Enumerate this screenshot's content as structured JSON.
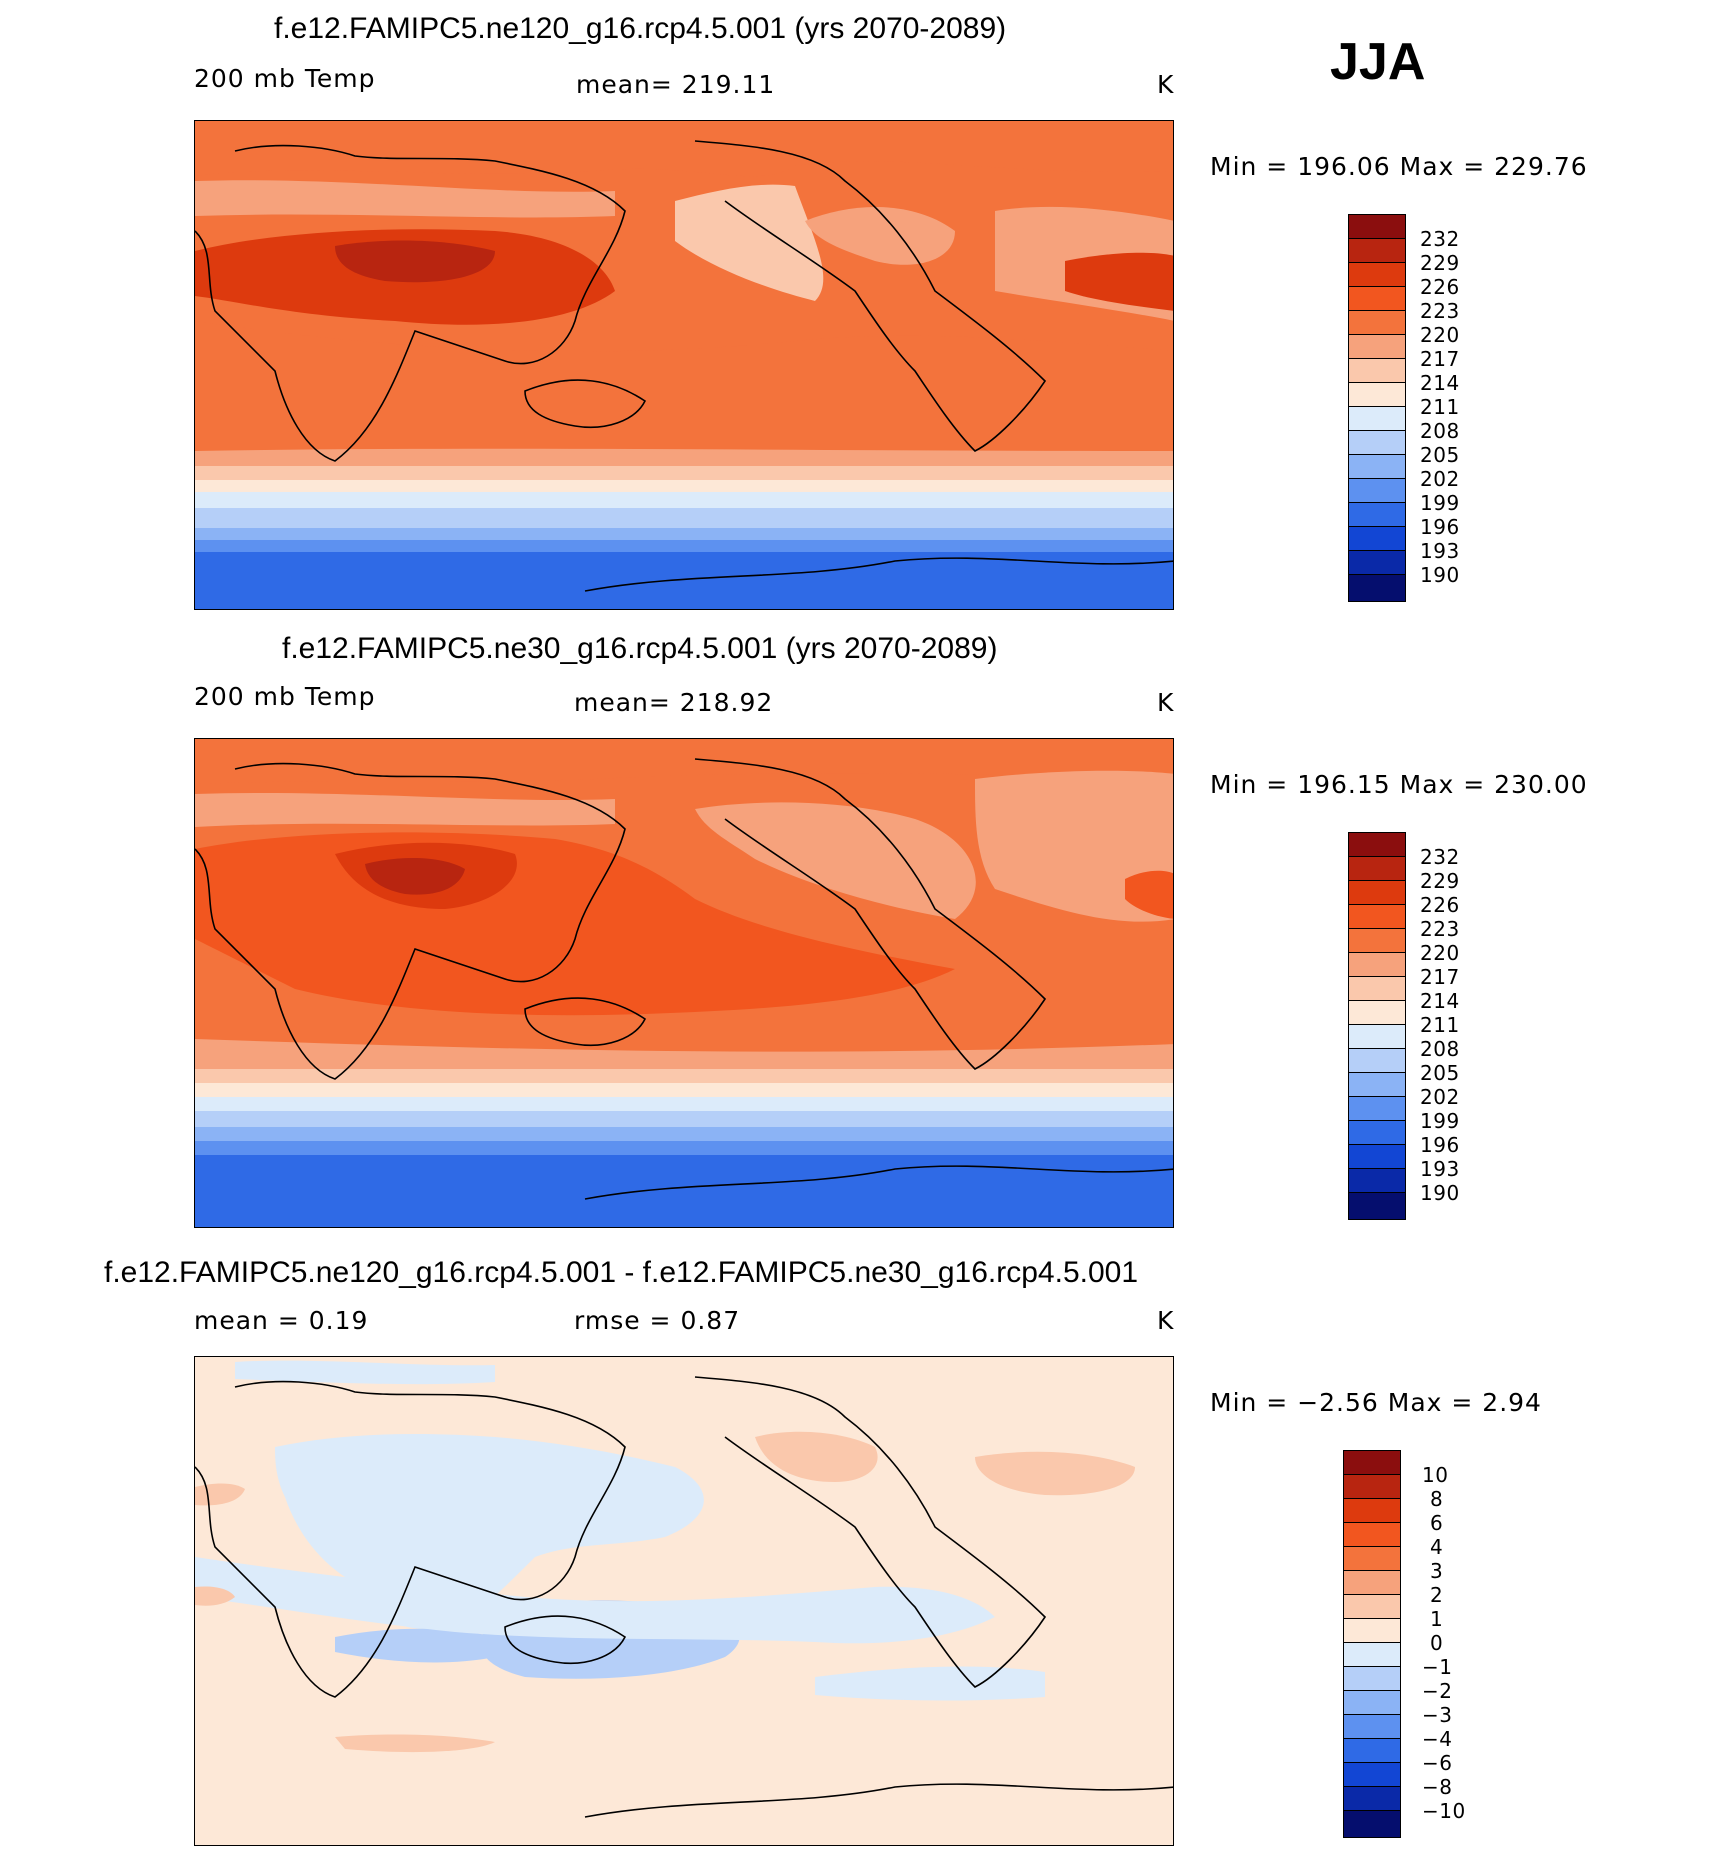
{
  "season": "JJA",
  "panels": [
    {
      "title": "f.e12.FAMIPC5.ne120_g16.rcp4.5.001 (yrs 2070-2089)",
      "variable": "200 mb Temp",
      "stat": "mean=  219.11",
      "units": "K",
      "minmax": "Min  =  196.06  Max  =  229.76"
    },
    {
      "title": "f.e12.FAMIPC5.ne30_g16.rcp4.5.001 (yrs 2070-2089)",
      "variable": "200 mb Temp",
      "stat": "mean=  218.92",
      "units": "K",
      "minmax": "Min  =  196.15  Max  =  230.00"
    },
    {
      "title": "f.e12.FAMIPC5.ne120_g16.rcp4.5.001 - f.e12.FAMIPC5.ne30_g16.rcp4.5.001",
      "variable": "mean  =     0.19",
      "stat": "rmse  =     0.87",
      "units": "K",
      "minmax": "Min  =    −2.56  Max  =      2.94"
    }
  ],
  "temp_colorbar": {
    "levels": [
      "232",
      "229",
      "226",
      "223",
      "220",
      "217",
      "214",
      "211",
      "208",
      "205",
      "202",
      "199",
      "196",
      "193",
      "190"
    ],
    "colors": [
      "#8b0e0e",
      "#b82510",
      "#dd3a0e",
      "#f2561f",
      "#f3733c",
      "#f6a27c",
      "#fac8ac",
      "#fde8d7",
      "#dcebfa",
      "#b5cff8",
      "#8bb3f5",
      "#5d91f0",
      "#2f6ae6",
      "#1246d4",
      "#0a29a8",
      "#050e6e"
    ]
  },
  "diff_colorbar": {
    "levels": [
      "10",
      "8",
      "6",
      "4",
      "3",
      "2",
      "1",
      "0",
      "−1",
      "−2",
      "−3",
      "−4",
      "−6",
      "−8",
      "−10"
    ],
    "colors": [
      "#8b0e0e",
      "#b82510",
      "#dd3a0e",
      "#f2561f",
      "#f3733c",
      "#f6a27c",
      "#fac8ac",
      "#fde8d7",
      "#dcebfa",
      "#b5cff8",
      "#8bb3f5",
      "#5d91f0",
      "#2f6ae6",
      "#1246d4",
      "#0a29a8",
      "#050e6e"
    ]
  },
  "colors": {
    "warm_dark": "#dd3a0e",
    "warm_mid": "#f3733c",
    "warm_light": "#f6a27c",
    "cold": "#2f6ae6",
    "neutral": "#fde8d7",
    "diff_blue": "#dcebfa"
  }
}
